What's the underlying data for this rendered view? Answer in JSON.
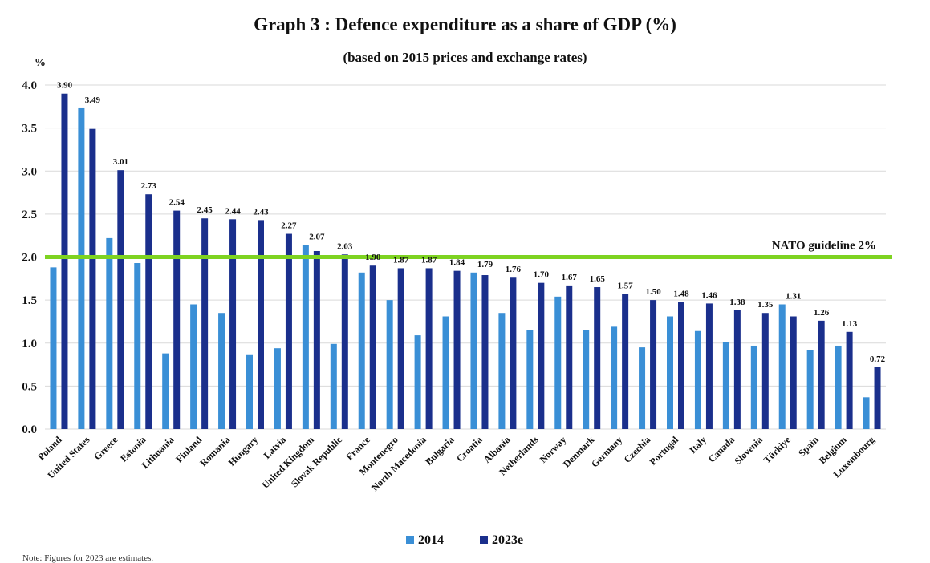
{
  "chart_data": {
    "type": "bar",
    "title": "Graph 3 : Defence expenditure as a share of GDP (%)",
    "subtitle": "(based on 2015 prices and exchange rates)",
    "ylabel": "%",
    "ylim": [
      0,
      4.0
    ],
    "yticks": [
      "0.0",
      "0.5",
      "1.0",
      "1.5",
      "2.0",
      "2.5",
      "3.0",
      "3.5",
      "4.0"
    ],
    "grid": true,
    "legend_position": "bottom",
    "categories": [
      "Poland",
      "United States",
      "Greece",
      "Estonia",
      "Lithuania",
      "Finland",
      "Romania",
      "Hungary",
      "Latvia",
      "United Kingdom",
      "Slovak Republic",
      "France",
      "Montenegro",
      "North Macedonia",
      "Bulgaria",
      "Croatia",
      "Albania",
      "Netherlands",
      "Norway",
      "Denmark",
      "Germany",
      "Czechia",
      "Portugal",
      "Italy",
      "Canada",
      "Slovenia",
      "Türkiye",
      "Spain",
      "Belgium",
      "Luxembourg"
    ],
    "series": [
      {
        "name": "2014",
        "color": "#3a8fd6",
        "values": [
          1.88,
          3.73,
          2.22,
          1.93,
          0.88,
          1.45,
          1.35,
          0.86,
          0.94,
          2.14,
          0.99,
          1.82,
          1.5,
          1.09,
          1.31,
          1.82,
          1.35,
          1.15,
          1.54,
          1.15,
          1.19,
          0.95,
          1.31,
          1.14,
          1.01,
          0.97,
          1.45,
          0.92,
          0.97,
          0.37
        ]
      },
      {
        "name": "2023e",
        "color": "#1a2f8c",
        "values": [
          3.9,
          3.49,
          3.01,
          2.73,
          2.54,
          2.45,
          2.44,
          2.43,
          2.27,
          2.07,
          2.03,
          1.9,
          1.87,
          1.87,
          1.84,
          1.79,
          1.76,
          1.7,
          1.67,
          1.65,
          1.57,
          1.5,
          1.48,
          1.46,
          1.38,
          1.35,
          1.31,
          1.26,
          1.13,
          0.72
        ],
        "data_labels": [
          "3.90",
          "3.49",
          "3.01",
          "2.73",
          "2.54",
          "2.45",
          "2.44",
          "2.43",
          "2.27",
          "2.07",
          "2.03",
          "1.90",
          "1.87",
          "1.87",
          "1.84",
          "1.79",
          "1.76",
          "1.70",
          "1.67",
          "1.65",
          "1.57",
          "1.50",
          "1.48",
          "1.46",
          "1.38",
          "1.35",
          "1.31",
          "1.26",
          "1.13",
          "0.72"
        ]
      }
    ],
    "reference_line": {
      "value": 2.0,
      "label": "NATO guideline 2%",
      "color": "#7ed321"
    },
    "gridline_color": "#d9d9d9"
  },
  "note": "Note: Figures for 2023 are estimates."
}
